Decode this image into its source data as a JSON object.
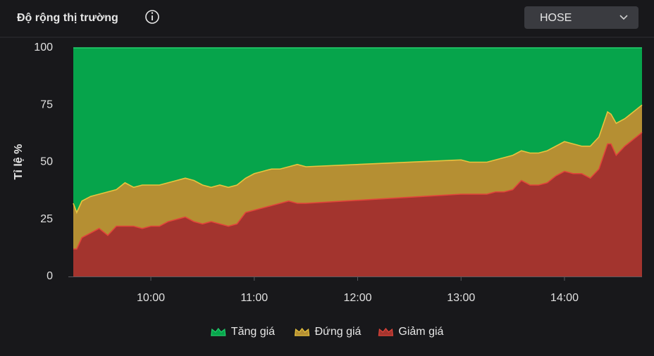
{
  "header": {
    "title": "Độ rộng thị trường",
    "dropdown": "HOSE"
  },
  "chart_data": {
    "type": "area",
    "stacked": true,
    "y_label": "Tỉ lệ %",
    "x": [
      "09:15",
      "09:17",
      "09:20",
      "09:25",
      "09:30",
      "09:35",
      "09:40",
      "09:45",
      "09:50",
      "09:55",
      "10:00",
      "10:05",
      "10:10",
      "10:15",
      "10:20",
      "10:25",
      "10:30",
      "10:35",
      "10:40",
      "10:45",
      "10:50",
      "10:55",
      "11:00",
      "11:05",
      "11:10",
      "11:15",
      "11:20",
      "11:25",
      "11:30",
      "13:00",
      "13:05",
      "13:10",
      "13:15",
      "13:20",
      "13:25",
      "13:30",
      "13:35",
      "13:40",
      "13:45",
      "13:50",
      "13:55",
      "14:00",
      "14:05",
      "14:10",
      "14:15",
      "14:20",
      "14:25",
      "14:27",
      "14:30",
      "14:35",
      "14:40",
      "14:45"
    ],
    "series": [
      {
        "name": "Tăng giá",
        "color": "#06a44b",
        "line_color": "#22d06c",
        "values": [
          68,
          72,
          67,
          65,
          64,
          63,
          62,
          59,
          61,
          60,
          60,
          60,
          59,
          58,
          57,
          58,
          60,
          61,
          60,
          61,
          60,
          57,
          55,
          54,
          53,
          53,
          52,
          51,
          52,
          49,
          50,
          50,
          50,
          49,
          48,
          47,
          45,
          46,
          46,
          45,
          43,
          41,
          42,
          43,
          43,
          39,
          28,
          29,
          33,
          31,
          28,
          25
        ]
      },
      {
        "name": "Đứng giá",
        "color": "#b58f33",
        "line_color": "#e9c43e",
        "values": [
          20,
          16,
          16,
          16,
          15,
          19,
          16,
          19,
          17,
          19,
          18,
          18,
          17,
          17,
          17,
          18,
          17,
          15,
          17,
          17,
          17,
          15,
          16,
          16,
          16,
          15,
          15,
          17,
          16,
          15,
          14,
          14,
          14,
          14,
          15,
          15,
          13,
          14,
          14,
          14,
          13,
          13,
          13,
          12,
          14,
          14,
          14,
          13,
          14,
          12,
          12,
          12
        ]
      },
      {
        "name": "Giảm giá",
        "color": "#a3342e",
        "line_color": "#e2443a",
        "values": [
          12,
          12,
          17,
          19,
          21,
          18,
          22,
          22,
          22,
          21,
          22,
          22,
          24,
          25,
          26,
          24,
          23,
          24,
          23,
          22,
          23,
          28,
          29,
          30,
          31,
          32,
          33,
          32,
          32,
          36,
          36,
          36,
          36,
          37,
          37,
          38,
          42,
          40,
          40,
          41,
          44,
          46,
          45,
          45,
          43,
          47,
          58,
          58,
          53,
          57,
          60,
          63
        ]
      }
    ],
    "xlim": [
      "09:15",
      "14:45"
    ],
    "xticks": [
      "10:00",
      "11:00",
      "12:00",
      "13:00",
      "14:00"
    ],
    "ylim": [
      0,
      100
    ],
    "yticks": [
      0,
      25,
      50,
      75,
      100
    ],
    "legend": "bottom"
  }
}
